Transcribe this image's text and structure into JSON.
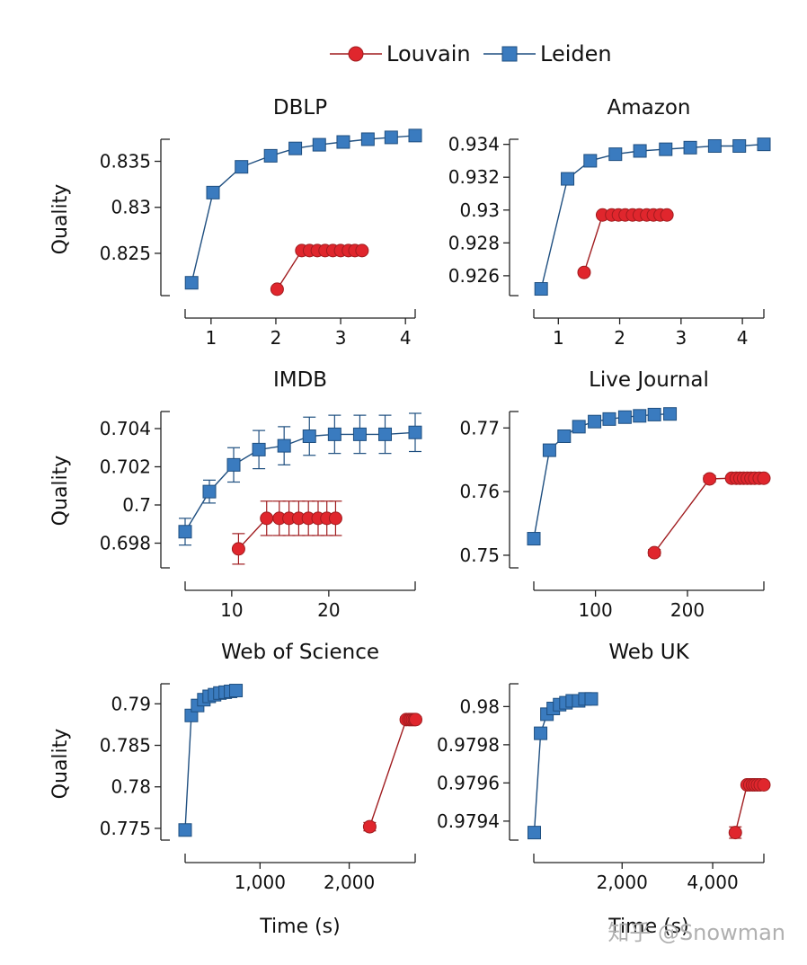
{
  "legend": {
    "items": [
      {
        "label": "Louvain",
        "color": "#e0262d",
        "edge": "#a01c1f",
        "marker": "circle"
      },
      {
        "label": "Leiden",
        "color": "#3a7bbf",
        "edge": "#1f4f80",
        "marker": "square"
      }
    ]
  },
  "xlabel_common": "Time (s)",
  "ylabel_common": "Quality",
  "watermark": "知乎 @Snowman",
  "chart_data": [
    {
      "type": "line",
      "title": "DBLP",
      "ylabel": "Quality",
      "xlabel": "",
      "xlim": [
        0.6,
        4.15
      ],
      "ylim": [
        0.8206,
        0.8372
      ],
      "xticks": [
        1,
        2,
        3,
        4
      ],
      "xtick_labels": [
        "1",
        "2",
        "3",
        "4"
      ],
      "yticks": [
        0.825,
        0.83,
        0.835
      ],
      "ytick_labels": [
        "0.825",
        "0.83",
        "0.835"
      ],
      "series": [
        {
          "name": "Louvain",
          "x": [
            2.02,
            2.4,
            2.52,
            2.64,
            2.76,
            2.88,
            3.0,
            3.12,
            3.22,
            3.33
          ],
          "y": [
            0.8211,
            0.8253,
            0.8253,
            0.8253,
            0.8253,
            0.8253,
            0.8253,
            0.8253,
            0.8253,
            0.8253
          ],
          "err": []
        },
        {
          "name": "Leiden",
          "x": [
            0.7,
            1.03,
            1.47,
            1.92,
            2.3,
            2.67,
            3.04,
            3.42,
            3.78,
            4.15
          ],
          "y": [
            0.8218,
            0.8316,
            0.8344,
            0.8356,
            0.8364,
            0.8368,
            0.8371,
            0.8374,
            0.8376,
            0.8378
          ],
          "err": []
        }
      ]
    },
    {
      "type": "line",
      "title": "Amazon",
      "ylabel": "",
      "xlabel": "",
      "xlim": [
        0.6,
        4.35
      ],
      "ylim": [
        0.9249,
        0.9342
      ],
      "xticks": [
        1,
        2,
        3,
        4
      ],
      "xtick_labels": [
        "1",
        "2",
        "3",
        "4"
      ],
      "yticks": [
        0.926,
        0.928,
        0.93,
        0.932,
        0.934
      ],
      "ytick_labels": [
        "0.926",
        "0.928",
        "0.93",
        "0.932",
        "0.934"
      ],
      "series": [
        {
          "name": "Louvain",
          "x": [
            1.42,
            1.72,
            1.87,
            1.98,
            2.09,
            2.21,
            2.32,
            2.44,
            2.55,
            2.66,
            2.77
          ],
          "y": [
            0.9262,
            0.9297,
            0.9297,
            0.9297,
            0.9297,
            0.9297,
            0.9297,
            0.9297,
            0.9297,
            0.9297,
            0.9297
          ],
          "err": []
        },
        {
          "name": "Leiden",
          "x": [
            0.72,
            1.15,
            1.52,
            1.93,
            2.33,
            2.75,
            3.15,
            3.55,
            3.95,
            4.35
          ],
          "y": [
            0.9252,
            0.9319,
            0.933,
            0.9334,
            0.9336,
            0.9337,
            0.9338,
            0.9339,
            0.9339,
            0.934
          ],
          "err": []
        }
      ]
    },
    {
      "type": "line",
      "title": "IMDB",
      "ylabel": "Quality",
      "xlabel": "",
      "xlim": [
        5.2,
        28.9
      ],
      "ylim": [
        0.6968,
        0.7048
      ],
      "xticks": [
        10,
        20
      ],
      "xtick_labels": [
        "10",
        "20"
      ],
      "yticks": [
        0.698,
        0.7,
        0.702,
        0.704
      ],
      "ytick_labels": [
        "0.698",
        "0.7",
        "0.702",
        "0.704"
      ],
      "series": [
        {
          "name": "Louvain",
          "x": [
            10.7,
            13.6,
            14.9,
            15.9,
            16.9,
            17.9,
            18.9,
            19.8,
            20.7
          ],
          "y": [
            0.6977,
            0.6993,
            0.6993,
            0.6993,
            0.6993,
            0.6993,
            0.6993,
            0.6993,
            0.6993
          ],
          "err": [
            0.0008,
            0.0009,
            0.0009,
            0.0009,
            0.0009,
            0.0009,
            0.0009,
            0.0009,
            0.0009
          ]
        },
        {
          "name": "Leiden",
          "x": [
            5.2,
            7.7,
            10.2,
            12.8,
            15.4,
            18.0,
            20.6,
            23.2,
            25.8,
            28.9
          ],
          "y": [
            0.6986,
            0.7007,
            0.7021,
            0.7029,
            0.7031,
            0.7036,
            0.7037,
            0.7037,
            0.7037,
            0.7038
          ],
          "err": [
            0.0007,
            0.0006,
            0.0009,
            0.001,
            0.001,
            0.001,
            0.001,
            0.001,
            0.001,
            0.001
          ]
        }
      ]
    },
    {
      "type": "line",
      "title": "Live Journal",
      "ylabel": "",
      "xlabel": "",
      "xlim": [
        33,
        283
      ],
      "ylim": [
        0.7483,
        0.7723
      ],
      "xticks": [
        100,
        200
      ],
      "xtick_labels": [
        "100",
        "200"
      ],
      "yticks": [
        0.75,
        0.76,
        0.77
      ],
      "ytick_labels": [
        "0.75",
        "0.76",
        "0.77"
      ],
      "series": [
        {
          "name": "Louvain",
          "x": [
            164,
            224,
            248,
            253,
            257,
            261,
            265,
            269,
            273,
            278,
            283
          ],
          "y": [
            0.7504,
            0.762,
            0.7621,
            0.7621,
            0.7621,
            0.7621,
            0.7621,
            0.7621,
            0.7621,
            0.7621,
            0.7621
          ],
          "err": [
            0.0005,
            0.0005,
            0.0003,
            0.0003,
            0.0003,
            0.0003,
            0.0003,
            0.0003,
            0.0003,
            0.0003,
            0.0003
          ]
        },
        {
          "name": "Leiden",
          "x": [
            33,
            50,
            66,
            82,
            99,
            115,
            132,
            148,
            164,
            181
          ],
          "y": [
            0.7526,
            0.7665,
            0.7687,
            0.7702,
            0.771,
            0.7714,
            0.7717,
            0.7719,
            0.7721,
            0.7722
          ],
          "err": [
            0.0003,
            0.0003,
            0.0002,
            0.0002,
            0.0002,
            0.0002,
            0.0002,
            0.0002,
            0.0002,
            0.0002
          ]
        }
      ]
    },
    {
      "type": "line",
      "title": "Web of Science",
      "ylabel": "Quality",
      "xlabel": "Time (s)",
      "xlim": [
        160,
        2740
      ],
      "ylim": [
        0.7738,
        0.7922
      ],
      "xticks": [
        1000,
        2000
      ],
      "xtick_labels": [
        "1,000",
        "2,000"
      ],
      "yticks": [
        0.775,
        0.78,
        0.785,
        0.79
      ],
      "ytick_labels": [
        "0.775",
        "0.78",
        "0.785",
        "0.79"
      ],
      "series": [
        {
          "name": "Louvain",
          "x": [
            2230,
            2640,
            2670,
            2690,
            2710,
            2730,
            2745
          ],
          "y": [
            0.7752,
            0.7881,
            0.7881,
            0.7881,
            0.7881,
            0.7881,
            0.7881
          ],
          "err": [
            0.0005,
            0.0003,
            0.0003,
            0.0003,
            0.0003,
            0.0003,
            0.0003
          ]
        },
        {
          "name": "Leiden",
          "x": [
            160,
            230,
            300,
            370,
            430,
            490,
            550,
            610,
            670,
            730
          ],
          "y": [
            0.7748,
            0.7886,
            0.7898,
            0.7905,
            0.7909,
            0.7911,
            0.7913,
            0.7914,
            0.7915,
            0.7916
          ],
          "err": []
        }
      ]
    },
    {
      "type": "line",
      "title": "Web UK",
      "ylabel": "",
      "xlabel": "Time (s)",
      "xlim": [
        50,
        5130
      ],
      "ylim": [
        0.97931,
        0.98011
      ],
      "xticks": [
        2000,
        4000
      ],
      "xtick_labels": [
        "2,000",
        "4,000"
      ],
      "yticks": [
        0.9794,
        0.9796,
        0.9798,
        0.98
      ],
      "ytick_labels": [
        "0.9794",
        "0.9796",
        "0.9798",
        "0.98"
      ],
      "series": [
        {
          "name": "Louvain",
          "x": [
            4500,
            4760,
            4820,
            4880,
            4930,
            4990,
            5050,
            5130
          ],
          "y": [
            0.97934,
            0.97959,
            0.97959,
            0.97959,
            0.97959,
            0.97959,
            0.97959,
            0.97959
          ],
          "err": [
            3e-05,
            0.0,
            0.0,
            0.0,
            0.0,
            0.0,
            0.0,
            0.0
          ]
        },
        {
          "name": "Leiden",
          "x": [
            60,
            200,
            340,
            480,
            620,
            760,
            900,
            1040,
            1180,
            1320
          ],
          "y": [
            0.97934,
            0.97986,
            0.97996,
            0.97999,
            0.98001,
            0.98002,
            0.98003,
            0.98003,
            0.98004,
            0.98004
          ],
          "err": []
        }
      ]
    }
  ]
}
